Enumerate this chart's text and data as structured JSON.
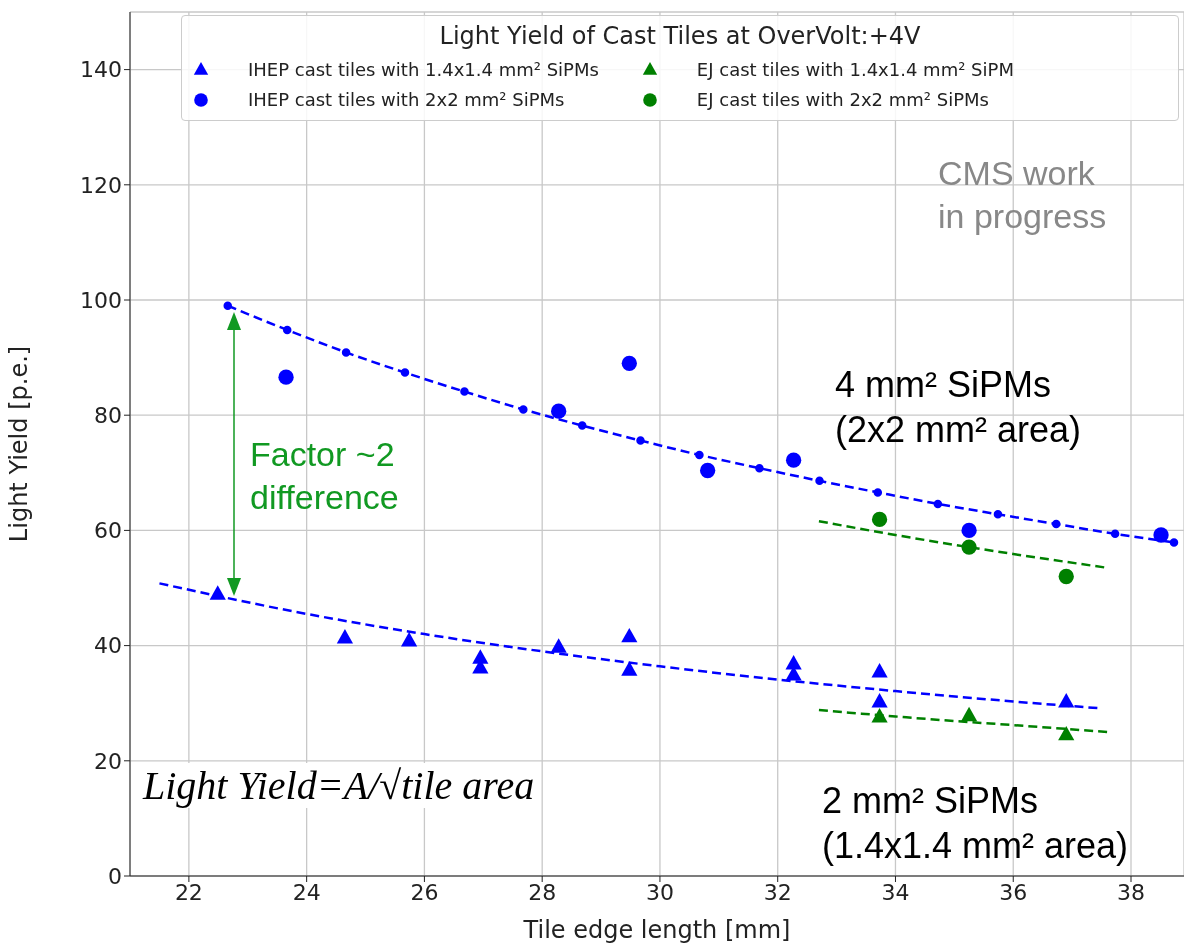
{
  "chart_data": {
    "type": "scatter",
    "legend_title": "Light Yield of Cast Tiles at OverVolt:+4V",
    "xlabel": "Tile edge length [mm]",
    "ylabel": "Light Yield [p.e.]",
    "xlim": [
      21,
      38.9
    ],
    "ylim": [
      0,
      150
    ],
    "xticks": [
      22,
      24,
      26,
      28,
      30,
      32,
      34,
      36,
      38
    ],
    "yticks": [
      0,
      20,
      40,
      60,
      80,
      100,
      120,
      140
    ],
    "grid": true,
    "legend": "top",
    "series": [
      {
        "name": "IHEP cast tiles with 1.4x1.4 mm² SiPMs",
        "marker": "triangle",
        "color": "#0000ff",
        "x": [
          22.49,
          24.65,
          25.74,
          26.95,
          26.95,
          28.28,
          29.48,
          29.48,
          32.27,
          32.27,
          33.73,
          33.73,
          36.9
        ],
        "values": [
          48.9,
          41.3,
          40.8,
          37.8,
          36.1,
          39.7,
          41.5,
          35.7,
          36.8,
          34.9,
          35.4,
          30.2,
          30.2
        ]
      },
      {
        "name": "IHEP cast tiles with 2x2 mm² SiPMs",
        "marker": "circle",
        "color": "#0000ff",
        "x": [
          23.65,
          28.28,
          29.48,
          30.81,
          32.27,
          35.25,
          38.51
        ],
        "values": [
          86.6,
          80.7,
          89.0,
          70.4,
          72.2,
          60.0,
          59.2
        ]
      },
      {
        "name": "EJ cast tiles with 1.4x1.4 mm² SiPM",
        "marker": "triangle",
        "color": "#008000",
        "x": [
          33.73,
          35.25,
          36.9
        ],
        "values": [
          27.6,
          27.8,
          24.5
        ]
      },
      {
        "name": "EJ cast tiles with 2x2 mm² SiPMs",
        "marker": "circle",
        "color": "#008000",
        "x": [
          33.73,
          35.25,
          36.9
        ],
        "values": [
          61.9,
          57.1,
          52.0
        ]
      },
      {
        "type": "line",
        "marker": "circle",
        "line_style": "dashed",
        "color": "#0000ff",
        "x": [
          22.66,
          23.67,
          24.67,
          25.67,
          26.68,
          27.68,
          28.68,
          29.67,
          30.67,
          31.69,
          32.71,
          33.7,
          34.72,
          35.74,
          36.73,
          37.73,
          38.73
        ],
        "values": [
          99.0,
          94.8,
          90.9,
          87.4,
          84.1,
          81.0,
          78.2,
          75.6,
          73.1,
          70.8,
          68.6,
          66.6,
          64.6,
          62.8,
          61.1,
          59.4,
          57.9
        ]
      },
      {
        "type": "line",
        "marker": "none",
        "line_style": "dashed",
        "color": "#0000ff",
        "x": [
          21.5,
          24,
          26,
          28,
          30,
          32,
          34,
          36,
          37.5
        ],
        "values": [
          50.8,
          45.5,
          42.0,
          39.0,
          36.4,
          34.1,
          32.1,
          30.3,
          29.1
        ]
      },
      {
        "type": "line",
        "marker": "none",
        "line_style": "dashed",
        "color": "#008000",
        "x": [
          32.7,
          34,
          35,
          36,
          37.6
        ],
        "values": [
          61.6,
          59.2,
          57.5,
          55.9,
          53.5
        ]
      },
      {
        "type": "line",
        "marker": "none",
        "line_style": "dashed",
        "color": "#008000",
        "x": [
          32.7,
          34,
          35,
          36,
          37.6
        ],
        "values": [
          28.8,
          27.7,
          26.9,
          26.2,
          25.0
        ]
      }
    ],
    "annotations": [
      "CMS work\nin progress",
      "4 mm² SiPMs\n(2x2 mm² area)",
      "Factor ~2\ndifference",
      "2 mm² SiPMs\n(1.4x1.4 mm² area)",
      "Light Yield=A/√tile area"
    ]
  }
}
